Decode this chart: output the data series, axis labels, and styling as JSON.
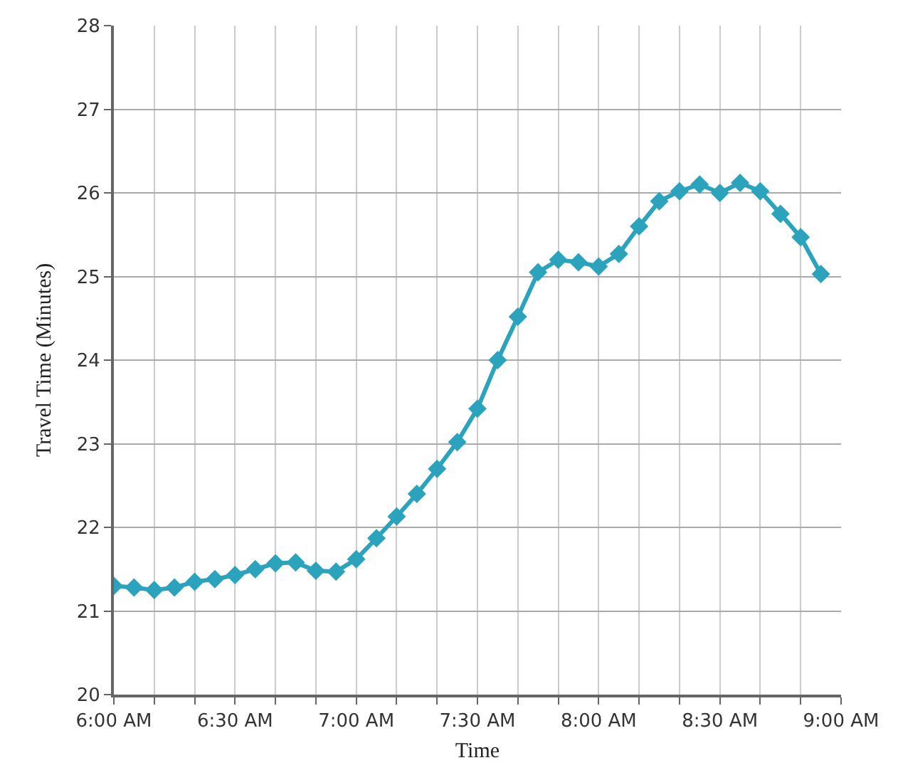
{
  "chart_data": {
    "type": "line",
    "xlabel": "Time",
    "ylabel": "Travel Time (Minutes)",
    "x": [
      6,
      6.0833,
      6.1667,
      6.25,
      6.3333,
      6.4167,
      6.5,
      6.5833,
      6.6667,
      6.75,
      6.8333,
      6.9167,
      7,
      7.0833,
      7.1667,
      7.25,
      7.3333,
      7.4167,
      7.5,
      7.5833,
      7.6667,
      7.75,
      7.8333,
      7.9167,
      8,
      8.0833,
      8.1667,
      8.25,
      8.3333,
      8.4167,
      8.5,
      8.5833,
      8.6667,
      8.75,
      8.8333,
      8.9167
    ],
    "series": [
      {
        "color": "#2ba3bd",
        "values": [
          21.3,
          21.28,
          21.25,
          21.28,
          21.35,
          21.38,
          21.43,
          21.5,
          21.57,
          21.58,
          21.48,
          21.47,
          21.62,
          21.87,
          22.13,
          22.4,
          22.7,
          23.02,
          23.42,
          24.0,
          24.52,
          25.05,
          25.2,
          25.17,
          25.12,
          25.27,
          25.6,
          25.9,
          26.02,
          26.1,
          26.0,
          26.12,
          26.02,
          25.75,
          25.47,
          25.03
        ]
      }
    ],
    "xlim": [
      6,
      9
    ],
    "ylim": [
      20,
      28
    ],
    "xticks": [
      {
        "value": 6,
        "label": "6:00 AM"
      },
      {
        "value": 6.1667,
        "label": null
      },
      {
        "value": 6.3333,
        "label": null
      },
      {
        "value": 6.5,
        "label": "6:30 AM"
      },
      {
        "value": 6.6667,
        "label": null
      },
      {
        "value": 6.8333,
        "label": null
      },
      {
        "value": 7,
        "label": "7:00 AM"
      },
      {
        "value": 7.1667,
        "label": null
      },
      {
        "value": 7.3333,
        "label": null
      },
      {
        "value": 7.5,
        "label": "7:30 AM"
      },
      {
        "value": 7.6667,
        "label": null
      },
      {
        "value": 7.8333,
        "label": null
      },
      {
        "value": 8,
        "label": "8:00 AM"
      },
      {
        "value": 8.1667,
        "label": null
      },
      {
        "value": 8.3333,
        "label": null
      },
      {
        "value": 8.5,
        "label": "8:30 AM"
      },
      {
        "value": 8.6667,
        "label": null
      },
      {
        "value": 8.8333,
        "label": null
      },
      {
        "value": 9,
        "label": "9:00 AM"
      }
    ],
    "yticks": [
      20,
      21,
      22,
      23,
      24,
      25,
      26,
      27,
      28
    ],
    "grid": true,
    "marker": "diamond",
    "line_style": "solid"
  }
}
